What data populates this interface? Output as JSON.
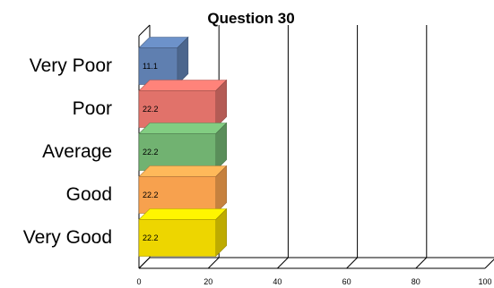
{
  "chart_data": {
    "type": "bar",
    "orientation": "horizontal",
    "title": "Question 30",
    "categories": [
      "Very Poor",
      "Poor",
      "Average",
      "Good",
      "Very Good"
    ],
    "values": [
      11.1,
      22.2,
      22.2,
      22.2,
      22.2
    ],
    "data_labels": [
      "11.1",
      "22.2",
      "22.2",
      "22.2",
      "22.2"
    ],
    "xlim": [
      0,
      100
    ],
    "x_ticks": [
      "0",
      "20",
      "40",
      "60",
      "80",
      "100"
    ],
    "grid": true,
    "three_d": true,
    "legend": "none",
    "colors": [
      "#5F7FB0",
      "#E1726A",
      "#71B271",
      "#F7A14E",
      "#EDD600"
    ]
  }
}
